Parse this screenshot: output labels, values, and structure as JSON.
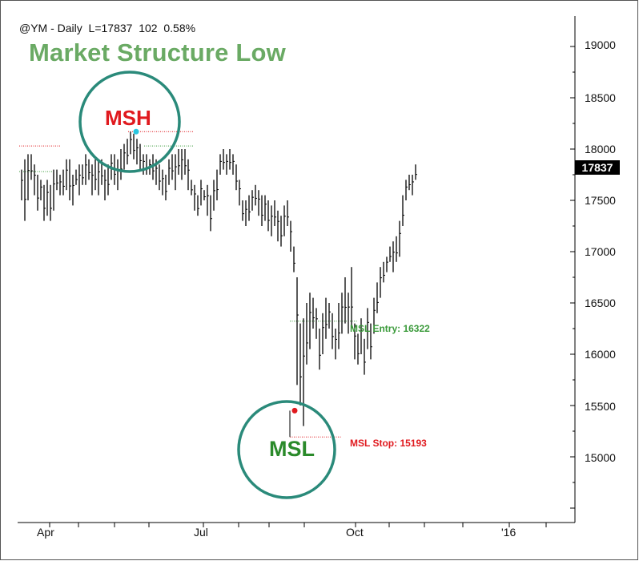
{
  "header": {
    "symbol_line": "@YM - Daily  L=17837  102  0.58%",
    "title": "Market Structure Low"
  },
  "annotations": {
    "msh_label": "MSH",
    "msl_label": "MSL",
    "entry_label": "MSL Entry: 16322",
    "stop_label": "MSL Stop: 15193",
    "last_price": "17837"
  },
  "colors": {
    "title": "#6aaa64",
    "msh": "#e0191e",
    "msl": "#2a8a2a",
    "circle": "#2a8a7a",
    "entry": "#3a9a3a",
    "stop": "#e0191e",
    "bars": "#000000",
    "msh_dot": "#29c6e0",
    "msl_dot": "#e0191e"
  },
  "chart_data": {
    "type": "ohlc",
    "series_name": "@YM - Daily",
    "yticks": [
      "19000",
      "18500",
      "18000",
      "17500",
      "17000",
      "16500",
      "16000",
      "15500",
      "15000"
    ],
    "xticks": [
      "Apr",
      "Jul",
      "Oct",
      "'16"
    ],
    "ylim": [
      14450,
      19250
    ],
    "levels": {
      "msh_high": 18170,
      "prior_high": 18030,
      "left_support": 17780,
      "msl_entry": 16322,
      "msl_stop": 15193,
      "msl_low": 15450
    },
    "last_close": 17837,
    "ranges": [
      [
        17500,
        17800
      ],
      [
        17300,
        17900
      ],
      [
        17500,
        17950
      ],
      [
        17700,
        17950
      ],
      [
        17550,
        17850
      ],
      [
        17400,
        17750
      ],
      [
        17500,
        17700
      ],
      [
        17300,
        17650
      ],
      [
        17350,
        17700
      ],
      [
        17300,
        17650
      ],
      [
        17400,
        17800
      ],
      [
        17600,
        17800
      ],
      [
        17550,
        17750
      ],
      [
        17550,
        17800
      ],
      [
        17600,
        17900
      ],
      [
        17500,
        17900
      ],
      [
        17450,
        17750
      ],
      [
        17650,
        17800
      ],
      [
        17550,
        17850
      ],
      [
        17650,
        17850
      ],
      [
        17650,
        17950
      ],
      [
        17700,
        17900
      ],
      [
        17550,
        17850
      ],
      [
        17600,
        17900
      ],
      [
        17550,
        17900
      ],
      [
        17650,
        17900
      ],
      [
        17500,
        17800
      ],
      [
        17550,
        17850
      ],
      [
        17700,
        17950
      ],
      [
        17650,
        17950
      ],
      [
        17600,
        17900
      ],
      [
        17700,
        18000
      ],
      [
        17800,
        18050
      ],
      [
        17850,
        18100
      ],
      [
        17950,
        18170
      ],
      [
        17900,
        18150
      ],
      [
        17850,
        18100
      ],
      [
        17800,
        18050
      ],
      [
        17750,
        17950
      ],
      [
        17750,
        17950
      ],
      [
        17750,
        17900
      ],
      [
        17700,
        17950
      ],
      [
        17650,
        17900
      ],
      [
        17600,
        17850
      ],
      [
        17550,
        17800
      ],
      [
        17500,
        17750
      ],
      [
        17650,
        17900
      ],
      [
        17700,
        17950
      ],
      [
        17600,
        17950
      ],
      [
        17750,
        18000
      ],
      [
        17700,
        18000
      ],
      [
        17750,
        18000
      ],
      [
        17600,
        17900
      ],
      [
        17550,
        17700
      ],
      [
        17400,
        17650
      ],
      [
        17350,
        17550
      ],
      [
        17450,
        17700
      ],
      [
        17500,
        17600
      ],
      [
        17350,
        17650
      ],
      [
        17200,
        17550
      ],
      [
        17400,
        17700
      ],
      [
        17500,
        17800
      ],
      [
        17750,
        17950
      ],
      [
        17800,
        18000
      ],
      [
        17750,
        17950
      ],
      [
        17800,
        18000
      ],
      [
        17750,
        17950
      ],
      [
        17600,
        17850
      ],
      [
        17450,
        17700
      ],
      [
        17300,
        17500
      ],
      [
        17250,
        17500
      ],
      [
        17300,
        17550
      ],
      [
        17400,
        17600
      ],
      [
        17450,
        17650
      ],
      [
        17350,
        17600
      ],
      [
        17250,
        17550
      ],
      [
        17300,
        17550
      ],
      [
        17200,
        17500
      ],
      [
        17150,
        17450
      ],
      [
        17250,
        17500
      ],
      [
        17100,
        17400
      ],
      [
        17050,
        17350
      ],
      [
        17150,
        17450
      ],
      [
        17250,
        17500
      ],
      [
        17000,
        17300
      ],
      [
        16800,
        17050
      ],
      [
        15700,
        16750
      ],
      [
        15500,
        16300
      ],
      [
        15300,
        16350
      ],
      [
        15900,
        16500
      ],
      [
        16050,
        16600
      ],
      [
        16250,
        16550
      ],
      [
        16150,
        16450
      ],
      [
        15850,
        16250
      ],
      [
        16000,
        16400
      ],
      [
        16150,
        16550
      ],
      [
        16250,
        16500
      ],
      [
        16050,
        16400
      ],
      [
        15950,
        16250
      ],
      [
        16050,
        16500
      ],
      [
        16200,
        16600
      ],
      [
        16300,
        16750
      ],
      [
        16200,
        16600
      ],
      [
        16250,
        16850
      ],
      [
        15950,
        16300
      ],
      [
        15900,
        16200
      ],
      [
        16000,
        16350
      ],
      [
        15800,
        16150
      ],
      [
        16050,
        16450
      ],
      [
        15950,
        16300
      ],
      [
        16200,
        16550
      ],
      [
        16400,
        16700
      ],
      [
        16550,
        16850
      ],
      [
        16700,
        16900
      ],
      [
        16800,
        16950
      ],
      [
        16900,
        17050
      ],
      [
        16800,
        17100
      ],
      [
        16900,
        17150
      ],
      [
        16950,
        17300
      ],
      [
        17250,
        17550
      ],
      [
        17500,
        17700
      ],
      [
        17600,
        17750
      ],
      [
        17550,
        17750
      ],
      [
        17700,
        17850
      ]
    ]
  }
}
